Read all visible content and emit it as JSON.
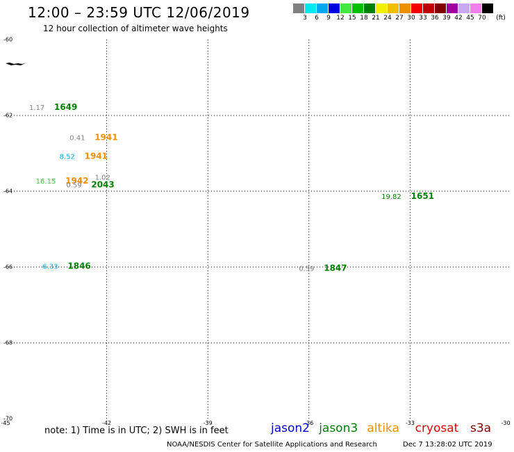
{
  "header": {
    "title": "12:00 – 23:59 UTC 12/06/2019",
    "subtitle": "12 hour collection of altimeter wave heights"
  },
  "colorbar": {
    "colors": [
      "#808080",
      "#00e8f0",
      "#00a8f0",
      "#0000e0",
      "#40e840",
      "#00c000",
      "#008000",
      "#f0f000",
      "#f0c000",
      "#f09000",
      "#f00000",
      "#c00000",
      "#800000",
      "#a000a0",
      "#c8a8f0",
      "#f080e8",
      "#000000"
    ],
    "labels": [
      "3",
      "6",
      "9",
      "12",
      "15",
      "18",
      "21",
      "24",
      "27",
      "30",
      "33",
      "36",
      "39",
      "42",
      "45",
      "70"
    ],
    "unit": "(ft)"
  },
  "axes": {
    "y_ticks": [
      "-60",
      "-62",
      "-64",
      "-66",
      "-68",
      "-70"
    ],
    "x_ticks": [
      "-45",
      "-42",
      "-39",
      "-36",
      "-33",
      "-30"
    ]
  },
  "observations": [
    {
      "swh": "1.17",
      "time": "1649",
      "swh_color": "#808080",
      "time_color": "#008000",
      "lon": -44.3,
      "lat": -61.85
    },
    {
      "swh": "0.41",
      "time": "1941",
      "swh_color": "#808080",
      "time_color": "#f09000",
      "lon": -43.1,
      "lat": -62.65
    },
    {
      "swh": "8.52",
      "time": "1941",
      "swh_color": "#00a8f0",
      "time_color": "#f09000",
      "lon": -43.4,
      "lat": -63.15
    },
    {
      "swh": "16.15",
      "time": "1942",
      "swh_color": "#40c040",
      "time_color": "#f09000",
      "lon": -44.1,
      "lat": -63.8
    },
    {
      "swh": "0.59",
      "time": "2043",
      "swh_color": "#808080",
      "time_color": "#008000",
      "lon": -43.2,
      "lat": -63.9
    },
    {
      "swh": "1.02",
      "time": "",
      "swh_color": "#808080",
      "time_color": "#008000",
      "lon": -42.35,
      "lat": -63.7
    },
    {
      "swh": "19.82",
      "time": "1651",
      "swh_color": "#008000",
      "time_color": "#008000",
      "lon": -33.85,
      "lat": -64.2
    },
    {
      "swh": "6.33",
      "time": "1846",
      "swh_color": "#00a8f0",
      "time_color": "#008000",
      "lon": -43.9,
      "lat": -66.05
    },
    {
      "swh": "0.59",
      "time": "1847",
      "swh_color": "#808080",
      "time_color": "#008000",
      "lon": -36.3,
      "lat": -66.1
    }
  ],
  "footer": {
    "note": "note: 1) Time is in UTC; 2) SWH is in feet",
    "legend": [
      {
        "label": "jason2",
        "color": "#0000c8"
      },
      {
        "label": "jason3",
        "color": "#008000"
      },
      {
        "label": "altika",
        "color": "#f09000"
      },
      {
        "label": "cryosat",
        "color": "#e00000"
      },
      {
        "label": "s3a",
        "color": "#800000"
      }
    ],
    "credit": "NOAA/NESDIS Center for Satellite Applications and Research",
    "timestamp": "Dec  7 13:28:02 UTC 2019"
  }
}
